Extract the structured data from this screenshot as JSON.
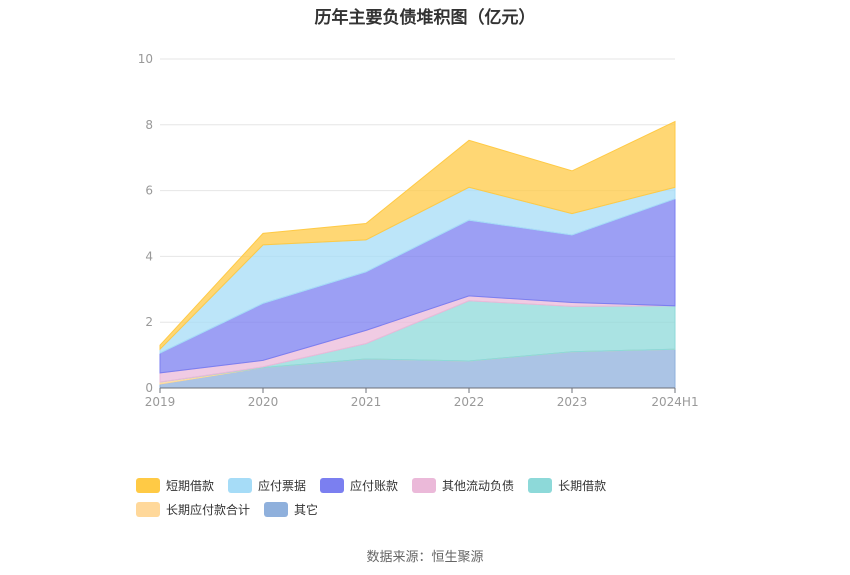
{
  "chart_data": {
    "type": "area",
    "stacked": true,
    "title": "历年主要负债堆积图（亿元）",
    "categories": [
      "2019",
      "2020",
      "2021",
      "2022",
      "2023",
      "2024H1"
    ],
    "ylim": [
      0,
      10
    ],
    "yticks": [
      "0",
      "2",
      "4",
      "6",
      "8",
      "10"
    ],
    "grid": true,
    "legend_position": "bottom",
    "series": [
      {
        "name": "其它",
        "color": "#8fb0dc",
        "values": [
          0.12,
          0.62,
          0.88,
          0.82,
          1.1,
          1.18
        ]
      },
      {
        "name": "长期应付款合计",
        "color": "#ffd89a",
        "values": [
          0.06,
          0.0,
          0.0,
          0.0,
          0.0,
          0.0
        ]
      },
      {
        "name": "长期借款",
        "color": "#8dd9d9",
        "values": [
          0.0,
          0.02,
          0.47,
          1.83,
          1.38,
          1.32
        ]
      },
      {
        "name": "其他流动负债",
        "color": "#ebb9d9",
        "values": [
          0.28,
          0.2,
          0.4,
          0.15,
          0.12,
          0.0
        ]
      },
      {
        "name": "应付账款",
        "color": "#7b7ff0",
        "values": [
          0.6,
          1.73,
          1.78,
          2.3,
          2.05,
          3.25
        ]
      },
      {
        "name": "应付票据",
        "color": "#a6dcf7",
        "values": [
          0.12,
          1.78,
          0.97,
          1.0,
          0.65,
          0.35
        ]
      },
      {
        "name": "短期借款",
        "color": "#ffca45",
        "values": [
          0.12,
          0.35,
          0.5,
          1.43,
          1.3,
          2.0
        ]
      }
    ],
    "legend_order": [
      "短期借款",
      "应付票据",
      "应付账款",
      "其他流动负债",
      "长期借款",
      "长期应付款合计",
      "其它"
    ]
  },
  "source": "数据来源：恒生聚源"
}
